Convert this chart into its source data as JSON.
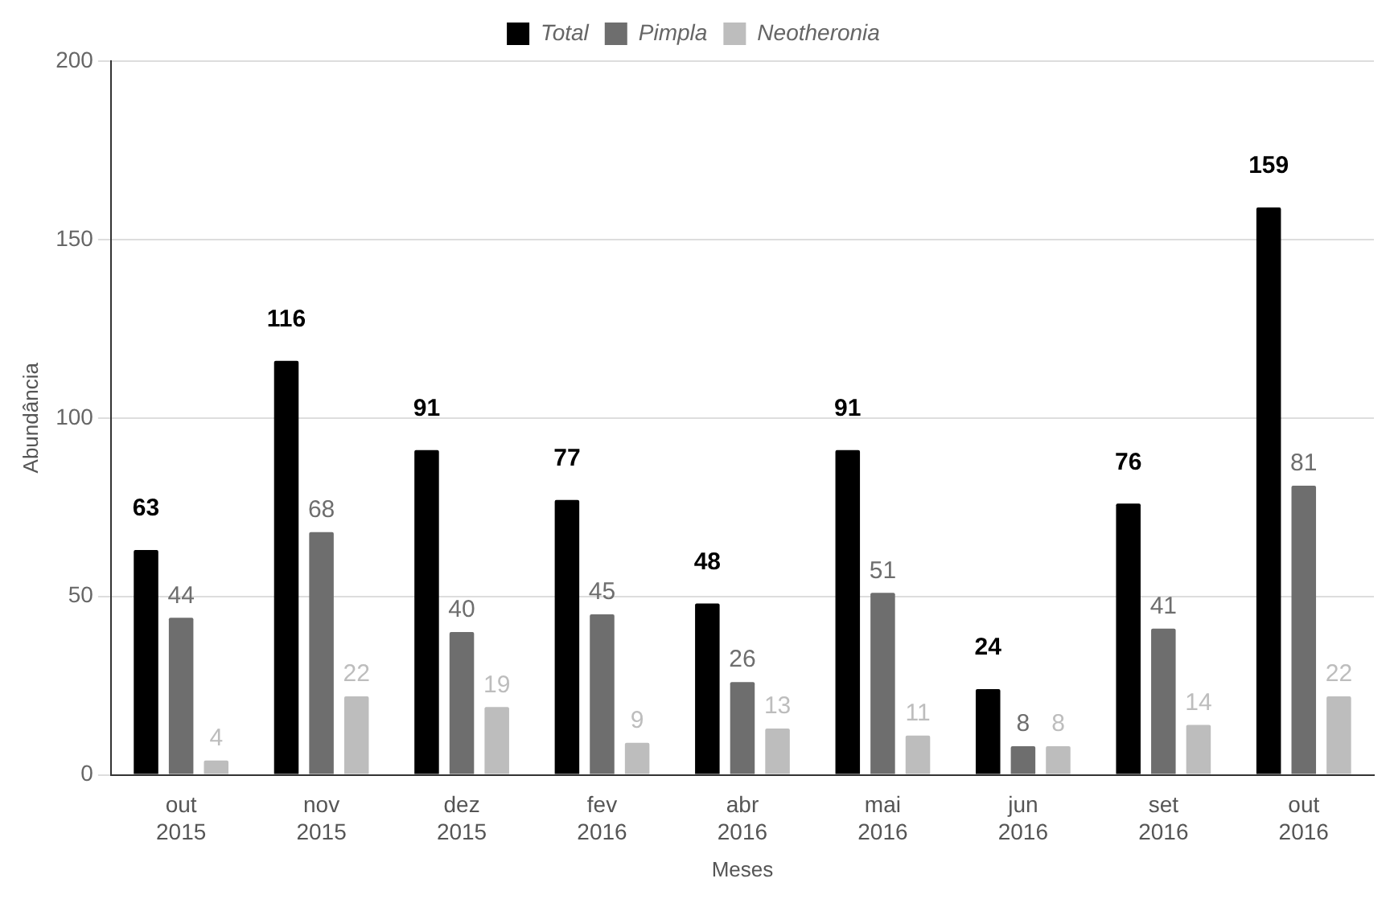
{
  "chart_data": {
    "type": "bar",
    "xlabel": "Meses",
    "ylabel": "Abundância",
    "categories": [
      "out 2015",
      "nov 2015",
      "dez 2015",
      "fev 2016",
      "abr 2016",
      "mai 2016",
      "jun 2016",
      "set 2016",
      "out 2016"
    ],
    "series": [
      {
        "name": "Total",
        "color": "#000000",
        "values": [
          63,
          116,
          91,
          77,
          48,
          91,
          24,
          76,
          159
        ]
      },
      {
        "name": "Pimpla",
        "color": "#6e6e6e",
        "values": [
          44,
          68,
          40,
          45,
          26,
          51,
          8,
          41,
          81
        ]
      },
      {
        "name": "Neotheronia",
        "color": "#bdbdbd",
        "values": [
          4,
          22,
          19,
          9,
          13,
          11,
          8,
          14,
          22
        ]
      }
    ],
    "ylim": [
      0,
      200
    ],
    "yticks": [
      0,
      50,
      100,
      150,
      200
    ],
    "grid": "y",
    "legend": "top",
    "data_labels": true
  }
}
